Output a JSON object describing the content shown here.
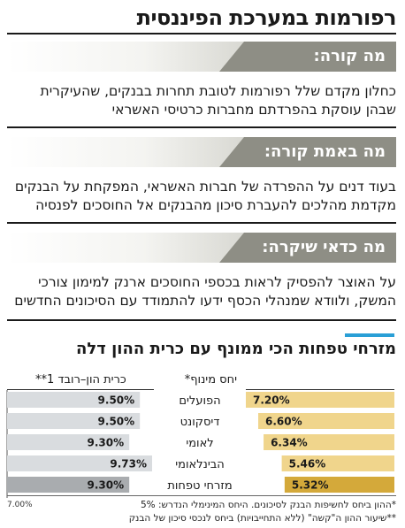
{
  "title": "רפורמות במערכת הפיננסית",
  "sections": [
    {
      "label": "מה קורה:",
      "text": "כחלון מקדם שלל רפורמות לטובת תחרות בבנקים, שהעיקרית שבהן עוסקת בהפרדתם מחברות כרטיסי האשראי"
    },
    {
      "label": "מה באמת קורה:",
      "text": "בעוד דנים על ההפרדה של חברות האשראי, המפקחת על הבנקים מקדמת מהלכים להעברת סיכון מהבנקים אל החוסכים לפנסיה"
    },
    {
      "label": "מה כדאי שיקרה:",
      "text": "על האוצר להפסיק לראות בכספי החוסכים ארנק למימון צורכי המשק, ולוודא שמנהלי הכסף ידעו להתמודד עם הסיכונים החדשים"
    }
  ],
  "chart_data": {
    "type": "bar",
    "title": "מזרחי טפחות הכי ממונף עם כרית ההון דלה",
    "categories": [
      "הפועלים",
      "דיסקונט",
      "לאומי",
      "הבינלאומי",
      "מזרחי טפחות"
    ],
    "series": [
      {
        "name": "יחס מינוף*",
        "values": [
          7.2,
          6.6,
          6.34,
          5.46,
          5.32
        ],
        "labels": [
          "7.20%",
          "6.60%",
          "6.34%",
          "5.46%",
          "5.32%"
        ],
        "color": "#f0d58c",
        "highlight_color": "#d4a93a"
      },
      {
        "name": "כרית הון–רובד 1**",
        "values": [
          9.5,
          9.5,
          9.3,
          9.73,
          9.3
        ],
        "labels": [
          "9.50%",
          "9.50%",
          "9.30%",
          "9.73%",
          "9.30%"
        ],
        "color": "#d9dcdf",
        "highlight_color": "#a9acaf",
        "axis_min": 7.0,
        "axis_min_label": "7.00%"
      }
    ],
    "highlight_category": "מזרחי טפחות"
  },
  "footnotes": [
    "*ההון ביחס לחשיפות הבנק לסיכונים. היחס המינימלי הנדרש: 5%",
    "**שיעור ההון ה\"קשה\" (ללא התחייבויות) ביחס לנכסי סיכון של הבנק"
  ],
  "colors": {
    "section_tab": "#8e8e85",
    "accent": "#2a9fd6"
  }
}
